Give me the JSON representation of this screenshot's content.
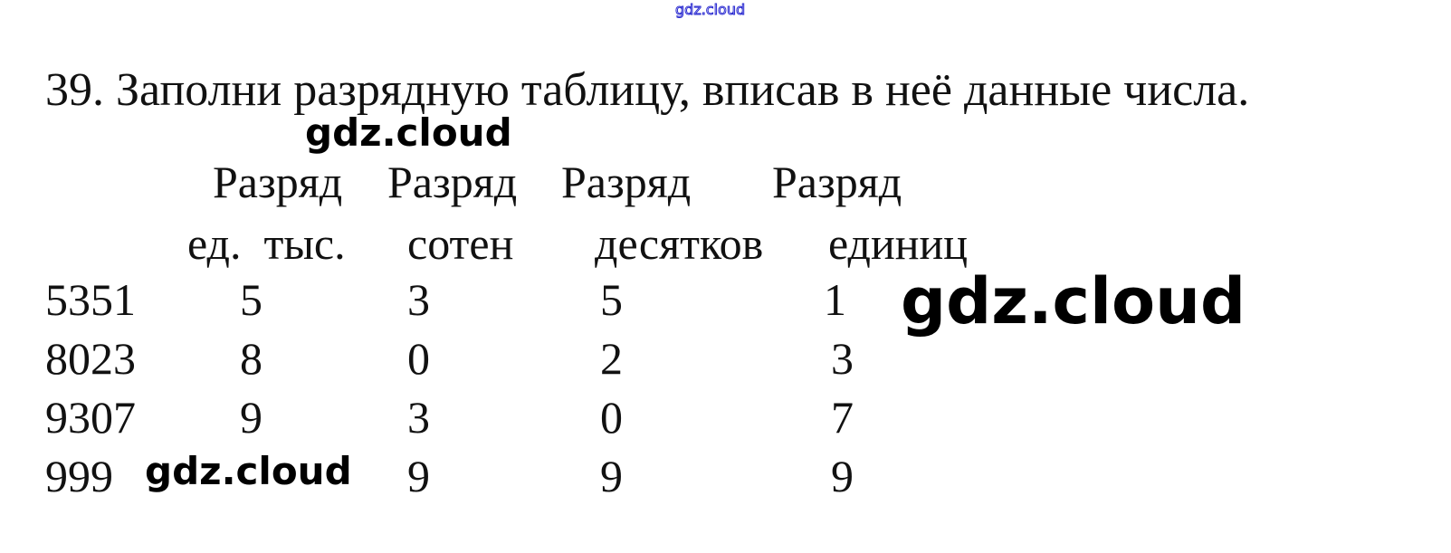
{
  "watermark": "gdz.cloud",
  "title": "39. Заполни разрядную таблицу, вписав в неё данные числа.",
  "headers": [
    {
      "line1": "Разряд",
      "line2": "ед.  тыс."
    },
    {
      "line1": "Разряд",
      "line2": "сотен"
    },
    {
      "line1": "Разряд",
      "line2": "десятков"
    },
    {
      "line1": "Разряд",
      "line2": "единиц"
    }
  ],
  "rows": [
    {
      "number": "5351",
      "digits": [
        "5",
        "3",
        "5",
        "1"
      ]
    },
    {
      "number": "8023",
      "digits": [
        "8",
        "0",
        "2",
        "3"
      ]
    },
    {
      "number": "9307",
      "digits": [
        "9",
        "3",
        "0",
        "7"
      ]
    },
    {
      "number": "999",
      "digits": [
        "",
        "9",
        "9",
        "9"
      ]
    }
  ]
}
